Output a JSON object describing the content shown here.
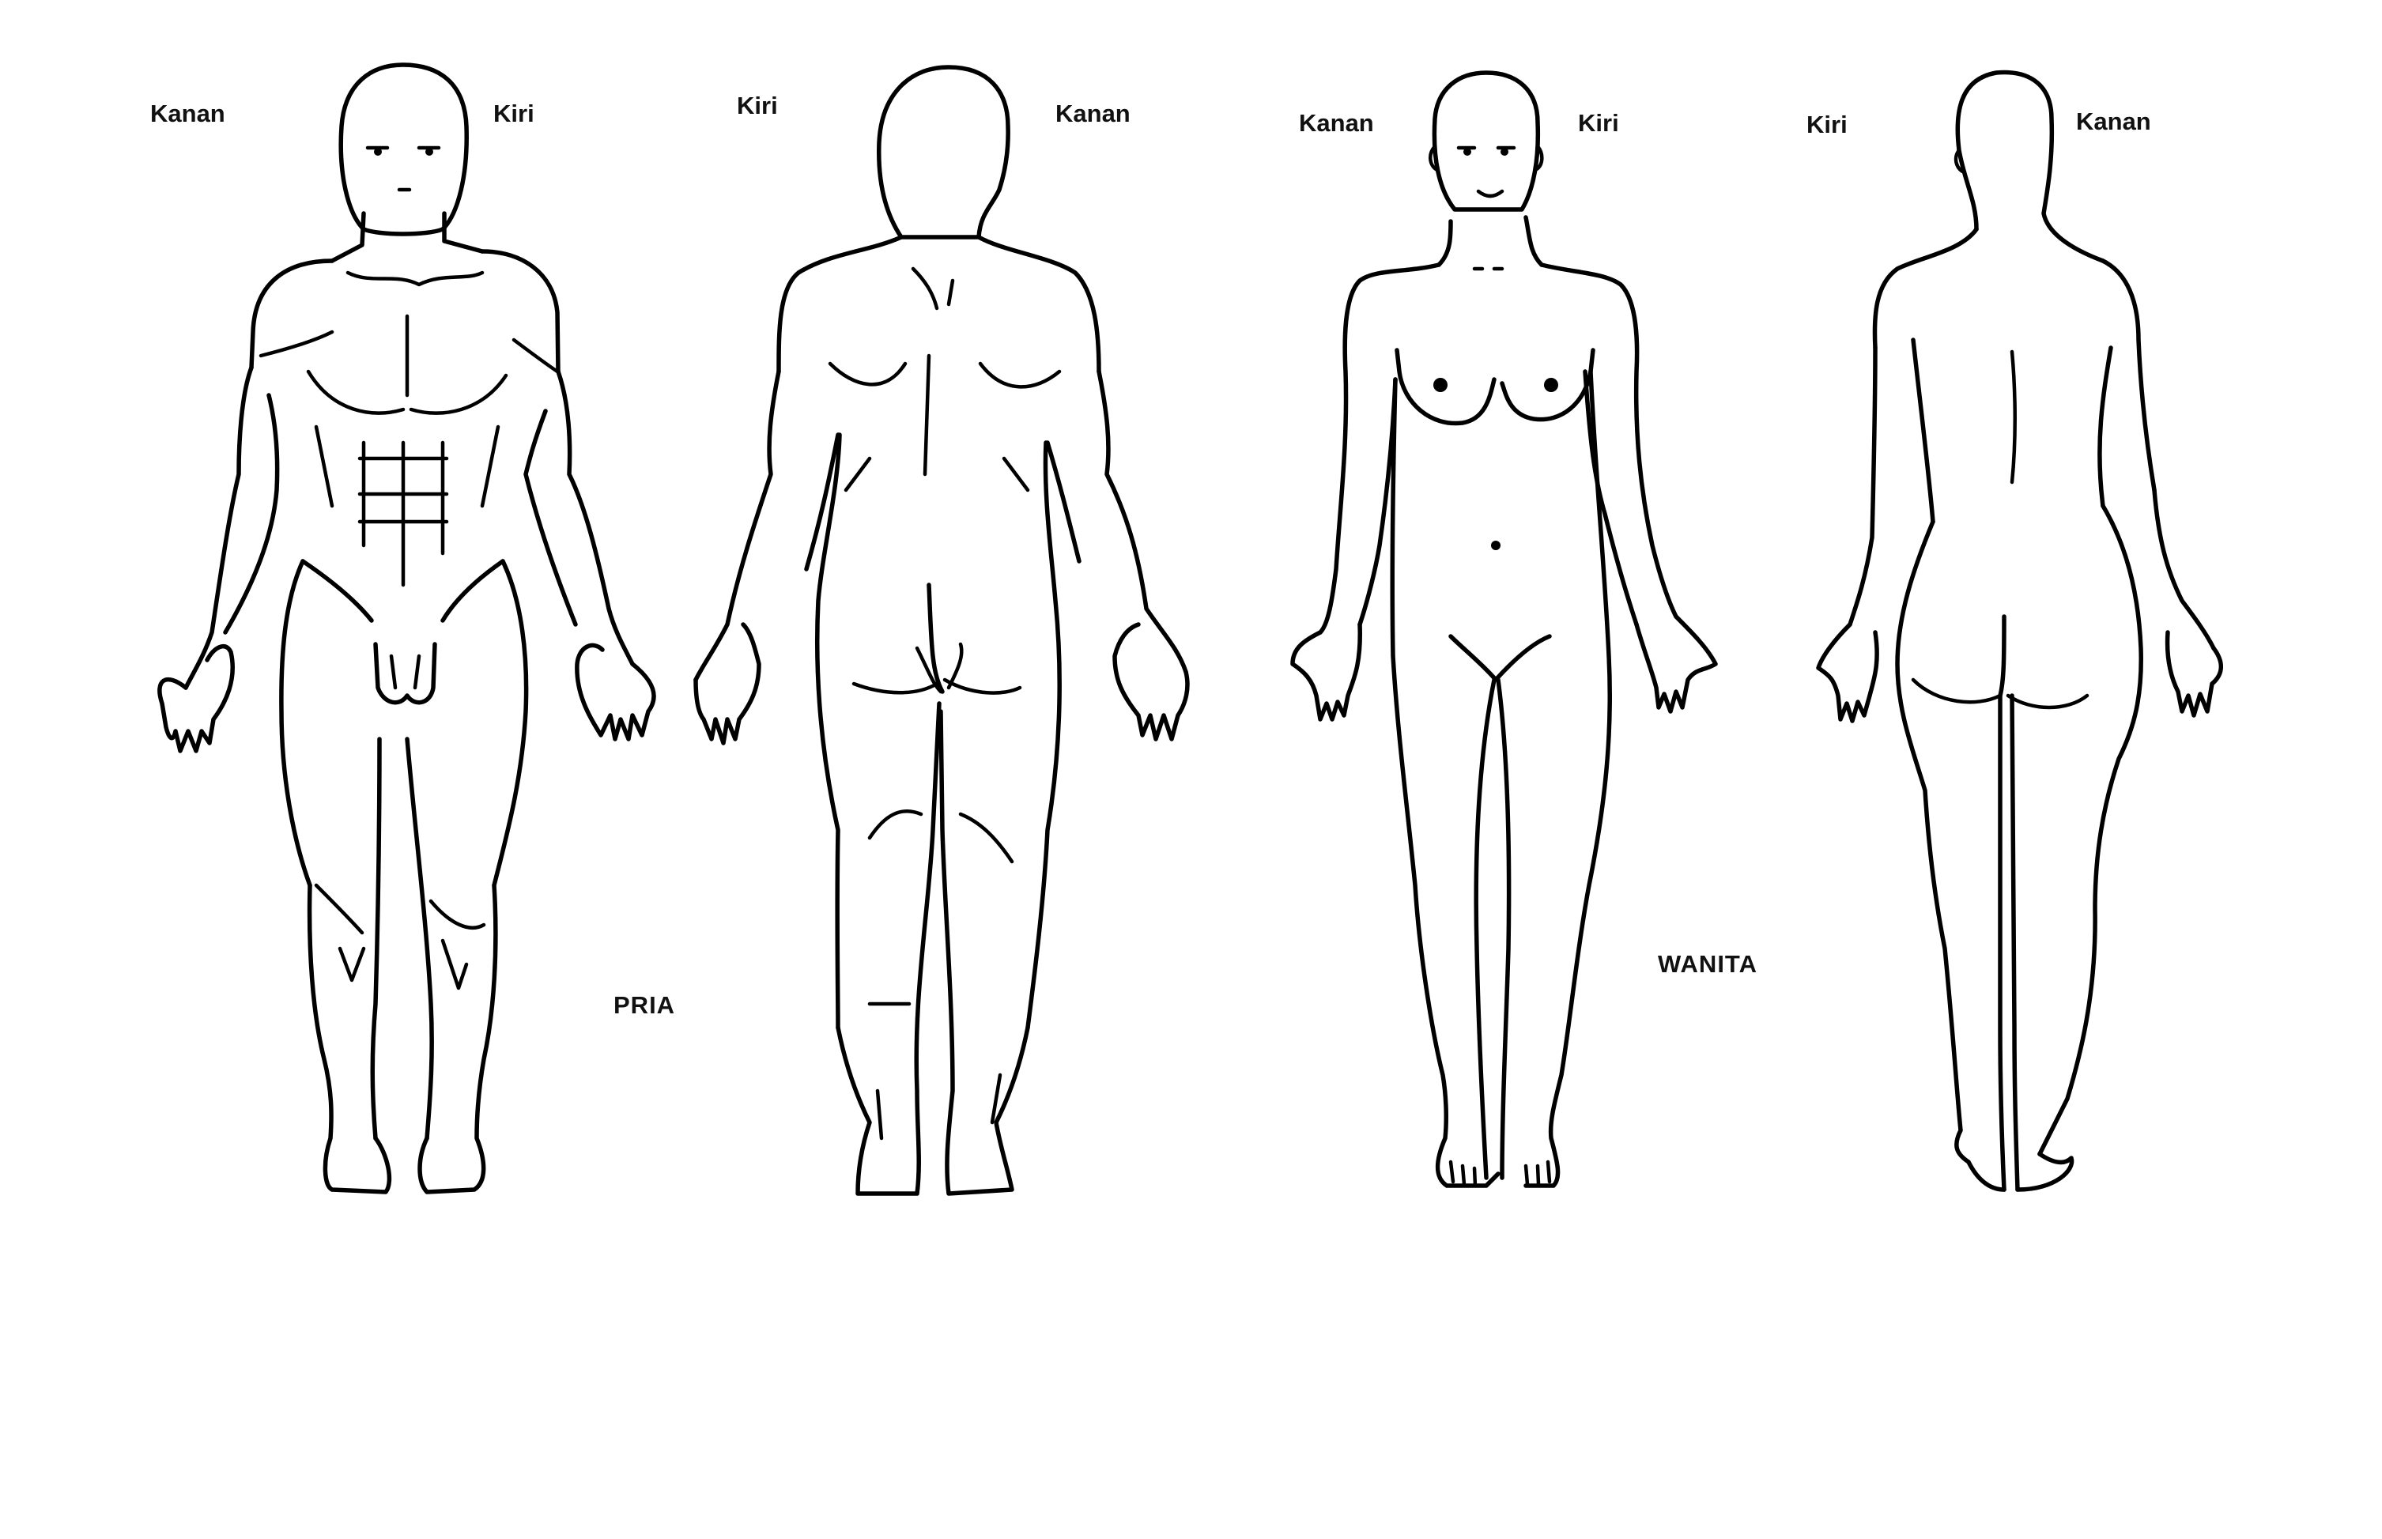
{
  "figures": {
    "male_front": {
      "right_label": "Kanan",
      "left_label": "Kiri"
    },
    "male_back": {
      "left_label": "Kiri",
      "right_label": "Kanan"
    },
    "female_front": {
      "right_label": "Kanan",
      "left_label": "Kiri"
    },
    "female_back": {
      "left_label": "Kiri",
      "right_label": "Kanan"
    }
  },
  "captions": {
    "male": "PRIA",
    "female": "WANITA"
  },
  "colors": {
    "line": "#000000",
    "background": "#ffffff"
  }
}
